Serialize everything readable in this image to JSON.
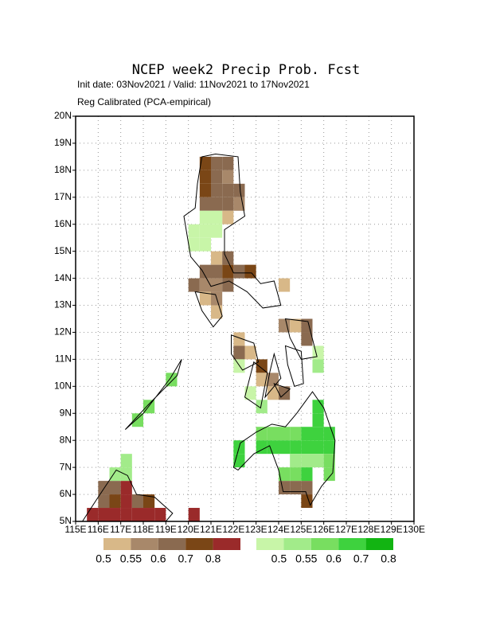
{
  "chart_data": {
    "type": "gridmap",
    "title": "NCEP week2 Precip Prob. Fcst",
    "subtitle": "Init date: 03Nov2021 / Valid: 11Nov2021 to 17Nov2021",
    "note": "Reg Calibrated (PCA-empirical)",
    "xlim": [
      115,
      130
    ],
    "ylim": [
      5,
      20
    ],
    "grid": true,
    "xticks": [
      {
        "value": 115,
        "label": "115E"
      },
      {
        "value": 116,
        "label": "116E"
      },
      {
        "value": 117,
        "label": "117E"
      },
      {
        "value": 118,
        "label": "118E"
      },
      {
        "value": 119,
        "label": "119E"
      },
      {
        "value": 120,
        "label": "120E"
      },
      {
        "value": 121,
        "label": "121E"
      },
      {
        "value": 122,
        "label": "122E"
      },
      {
        "value": 123,
        "label": "123E"
      },
      {
        "value": 124,
        "label": "124E"
      },
      {
        "value": 125,
        "label": "125E"
      },
      {
        "value": 126,
        "label": "126E"
      },
      {
        "value": 127,
        "label": "127E"
      },
      {
        "value": 128,
        "label": "128E"
      },
      {
        "value": 129,
        "label": "129E"
      },
      {
        "value": 130,
        "label": "130E"
      }
    ],
    "yticks": [
      {
        "value": 5,
        "label": "5N"
      },
      {
        "value": 6,
        "label": "6N"
      },
      {
        "value": 7,
        "label": "7N"
      },
      {
        "value": 8,
        "label": "8N"
      },
      {
        "value": 9,
        "label": "9N"
      },
      {
        "value": 10,
        "label": "10N"
      },
      {
        "value": 11,
        "label": "11N"
      },
      {
        "value": 12,
        "label": "12N"
      },
      {
        "value": 13,
        "label": "13N"
      },
      {
        "value": 14,
        "label": "14N"
      },
      {
        "value": 15,
        "label": "15N"
      },
      {
        "value": 16,
        "label": "16N"
      },
      {
        "value": 17,
        "label": "17N"
      },
      {
        "value": 18,
        "label": "18N"
      },
      {
        "value": 19,
        "label": "19N"
      },
      {
        "value": 20,
        "label": "20N"
      }
    ],
    "series": [
      {
        "levels": [
          0.5,
          0.55,
          0.6,
          0.7,
          0.8
        ],
        "colors": [
          "#d8b888",
          "#a8886a",
          "#8a6a50",
          "#7a4616",
          "#9a2a2a"
        ],
        "lon": [
          120.5,
          121.0,
          121.5,
          120.5,
          121.0,
          121.5,
          120.5,
          121.0,
          121.5,
          122.0,
          120.5,
          121.0,
          121.5,
          122.0,
          121.5,
          121.0,
          121.5,
          120.5,
          121.0,
          121.5,
          122.0,
          122.5,
          120.0,
          120.5,
          121.0,
          121.5,
          120.5,
          121.0,
          121.0,
          124.0,
          124.0,
          124.5,
          125.0,
          125.0,
          122.0,
          122.0,
          122.5,
          123.0,
          123.0,
          123.5,
          124.0,
          123.5,
          124.0,
          124.5,
          125.0,
          125.0,
          116.0,
          116.5,
          117.0,
          116.0,
          116.5,
          117.0,
          117.5,
          118.0,
          115.5,
          116.0,
          116.5,
          117.0,
          117.5,
          118.0,
          118.5,
          120.0
        ],
        "lat": [
          18.0,
          18.0,
          18.0,
          17.5,
          17.5,
          17.5,
          17.0,
          17.0,
          17.0,
          17.0,
          16.5,
          16.5,
          16.5,
          16.5,
          16.0,
          14.5,
          14.5,
          14.0,
          14.0,
          14.0,
          14.0,
          14.0,
          13.5,
          13.5,
          13.5,
          13.5,
          13.0,
          13.0,
          12.5,
          13.5,
          12.0,
          12.0,
          12.0,
          11.5,
          11.5,
          11.0,
          11.0,
          10.5,
          10.0,
          10.0,
          9.5,
          9.5,
          6.0,
          6.0,
          6.0,
          5.5,
          6.0,
          6.0,
          6.0,
          5.5,
          5.5,
          5.5,
          5.5,
          5.5,
          5.0,
          5.0,
          5.0,
          5.0,
          5.0,
          5.0,
          5.0,
          5.0
        ],
        "values": [
          0.7,
          0.6,
          0.6,
          0.7,
          0.6,
          0.55,
          0.7,
          0.6,
          0.6,
          0.6,
          0.6,
          0.6,
          0.6,
          0.55,
          0.5,
          0.5,
          0.6,
          0.6,
          0.6,
          0.7,
          0.6,
          0.7,
          0.6,
          0.55,
          0.55,
          0.6,
          0.5,
          0.55,
          0.5,
          0.5,
          0.55,
          0.5,
          0.6,
          0.6,
          0.5,
          0.6,
          0.5,
          0.7,
          0.5,
          0.55,
          0.6,
          0.5,
          0.6,
          0.6,
          0.6,
          0.7,
          0.6,
          0.6,
          0.8,
          0.6,
          0.7,
          0.8,
          0.6,
          0.7,
          0.8,
          0.8,
          0.8,
          0.8,
          0.8,
          0.8,
          0.8,
          0.8
        ]
      },
      {
        "levels": [
          0.5,
          0.55,
          0.6,
          0.7,
          0.8
        ],
        "colors": [
          "#c8f5a8",
          "#a2eb8a",
          "#78de60",
          "#3ed23e",
          "#12b412"
        ],
        "lon": [
          120.5,
          121.0,
          120.0,
          120.5,
          121.0,
          120.0,
          120.5,
          122.0,
          125.5,
          125.5,
          122.5,
          123.0,
          119.0,
          118.0,
          117.5,
          125.5,
          125.5,
          123.0,
          123.5,
          124.0,
          124.5,
          125.0,
          125.5,
          126.0,
          123.0,
          123.5,
          124.0,
          124.5,
          125.0,
          125.5,
          126.0,
          124.5,
          125.0,
          125.5,
          126.0,
          126.0,
          124.0,
          124.5,
          125.0,
          122.0,
          122.0,
          117.0,
          116.5,
          117.0
        ],
        "lat": [
          16.0,
          16.0,
          15.5,
          15.5,
          15.5,
          15.0,
          15.0,
          10.5,
          11.0,
          10.5,
          9.5,
          9.0,
          10.0,
          9.0,
          8.5,
          8.5,
          9.0,
          8.0,
          8.0,
          8.0,
          8.0,
          8.0,
          8.0,
          8.0,
          7.5,
          7.5,
          7.5,
          7.5,
          7.5,
          7.5,
          7.5,
          7.0,
          7.0,
          7.0,
          7.0,
          6.5,
          6.5,
          6.5,
          6.5,
          7.0,
          7.5,
          7.0,
          6.5,
          6.5
        ],
        "values": [
          0.5,
          0.5,
          0.5,
          0.5,
          0.5,
          0.5,
          0.5,
          0.5,
          0.5,
          0.55,
          0.5,
          0.55,
          0.6,
          0.6,
          0.6,
          0.7,
          0.7,
          0.6,
          0.6,
          0.6,
          0.6,
          0.7,
          0.7,
          0.7,
          0.7,
          0.7,
          0.7,
          0.7,
          0.7,
          0.7,
          0.7,
          0.55,
          0.55,
          0.55,
          0.6,
          0.6,
          0.6,
          0.6,
          0.7,
          0.7,
          0.7,
          0.55,
          0.55,
          0.55
        ]
      }
    ]
  }
}
